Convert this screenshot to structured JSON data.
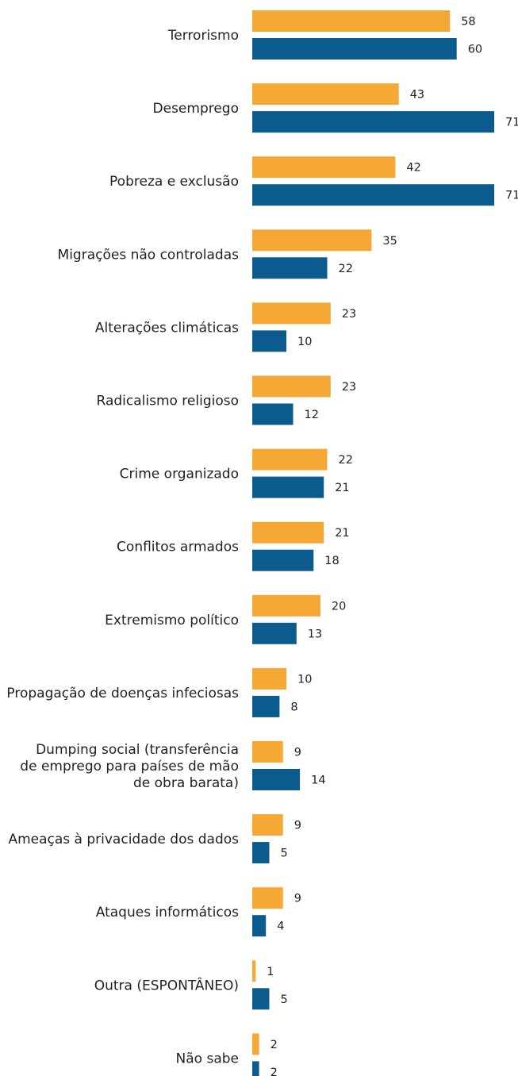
{
  "chart_data": {
    "type": "bar",
    "orientation": "horizontal",
    "categories": [
      "Terrorismo",
      "Desemprego",
      "Pobreza e exclusão",
      "Migrações não controladas",
      "Alterações climáticas",
      "Radicalismo religioso",
      "Crime organizado",
      "Conflitos armados",
      "Extremismo político",
      "Propagação de doenças infeciosas",
      "Dumping social (transferência de emprego para países de mão de obra barata)",
      "Ameaças à privacidade dos dados",
      "Ataques informáticos",
      "Outra (ESPONTÂNEO)",
      "Não sabe"
    ],
    "category_lines": [
      [
        "Terrorismo"
      ],
      [
        "Desemprego"
      ],
      [
        "Pobreza e exclusão"
      ],
      [
        "Migrações não controladas"
      ],
      [
        "Alterações climáticas"
      ],
      [
        "Radicalismo religioso"
      ],
      [
        "Crime organizado"
      ],
      [
        "Conflitos armados"
      ],
      [
        "Extremismo político"
      ],
      [
        "Propagação de doenças infeciosas"
      ],
      [
        "Dumping social (transferência",
        "de emprego para países de mão",
        "de obra barata)"
      ],
      [
        "Ameaças à privacidade dos dados"
      ],
      [
        "Ataques informáticos"
      ],
      [
        "Outra (ESPONTÂNEO)"
      ],
      [
        "Não sabe"
      ]
    ],
    "series": [
      {
        "color": "#f5a833",
        "values": [
          58,
          43,
          42,
          35,
          23,
          23,
          22,
          21,
          20,
          10,
          9,
          9,
          9,
          1,
          2
        ]
      },
      {
        "color": "#0b5b8e",
        "values": [
          60,
          71,
          71,
          22,
          10,
          12,
          21,
          18,
          13,
          8,
          14,
          5,
          4,
          5,
          2
        ]
      }
    ],
    "xlim": [
      0,
      71
    ],
    "grid": false,
    "legend": "none",
    "title": "",
    "xlabel": "",
    "ylabel": ""
  }
}
